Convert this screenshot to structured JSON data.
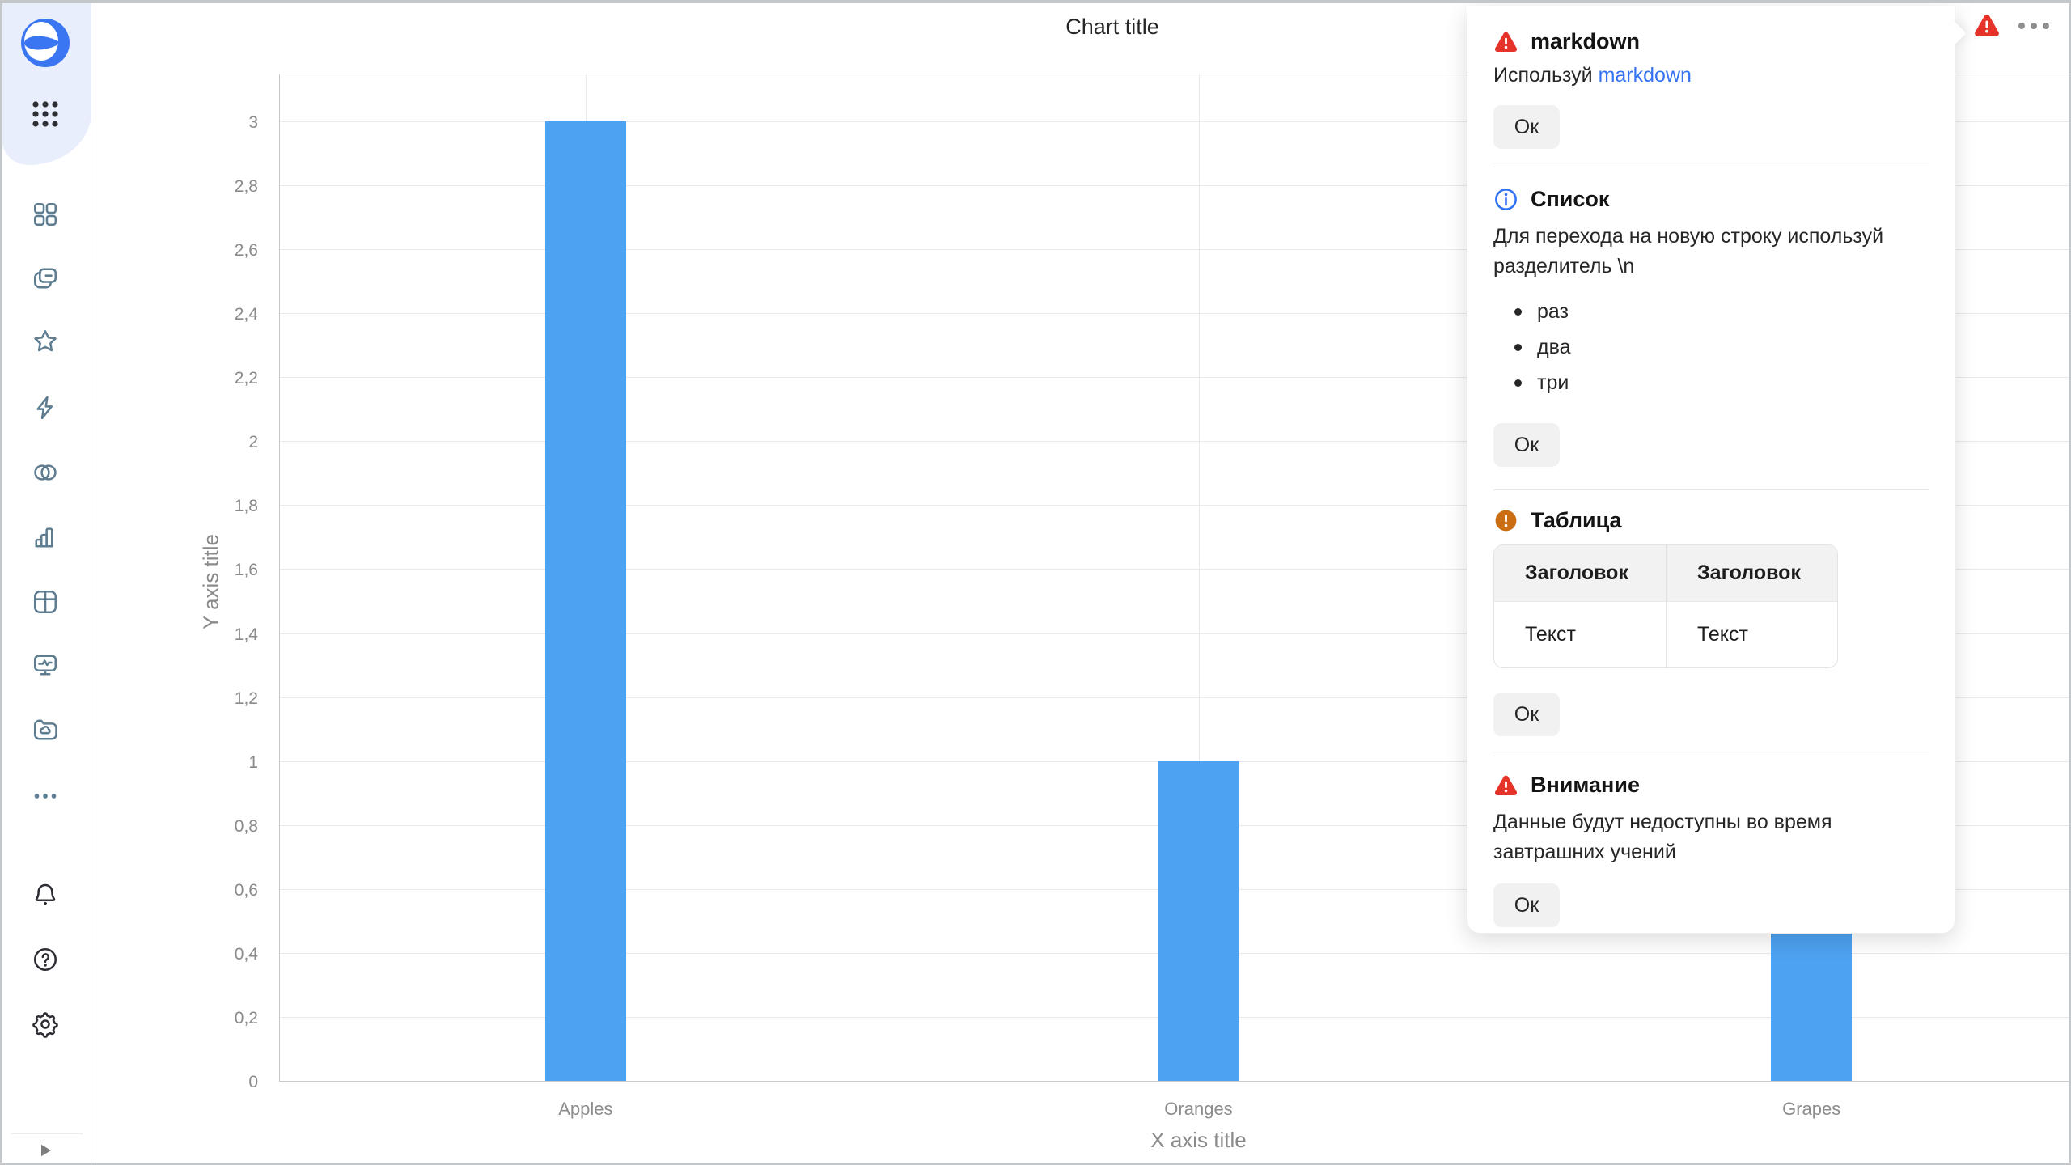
{
  "colors": {
    "bar_blue": "#4DA2F1",
    "link_blue": "#3673f2",
    "danger_red": "#e5332a",
    "info_blue": "#3173f4",
    "warning_orange": "#cb6d12",
    "sidebar_icon": "#5e7d90",
    "sidebar_icon_dark": "#2c2e33",
    "sidebar_accent_bg": "#e9eefc",
    "logo_blue": "#3b76f2"
  },
  "sidebar": {
    "logo": "datalens-logo",
    "icons_top": [
      "apps-grid-dots-icon",
      "dashboards-grid-icon",
      "collections-copy-icon",
      "favorites-star-icon",
      "editor-lightning-icon",
      "connections-circles-icon",
      "charts-bar-icon",
      "datasets-table-icon",
      "monitoring-screen-icon",
      "storage-folder-cloud-icon",
      "more-ellipsis-icon"
    ],
    "icons_bottom": [
      "notifications-bell-icon",
      "help-question-icon",
      "settings-gear-icon",
      "expand-play-icon"
    ]
  },
  "header": {
    "alerts_indicator": "alert-triangle-icon",
    "menu": "ellipsis-menu-icon"
  },
  "chart_data": {
    "type": "bar",
    "title": "Chart title",
    "categories": [
      "Apples",
      "Oranges",
      "Grapes"
    ],
    "values": [
      3,
      1,
      2
    ],
    "xlabel": "X axis title",
    "ylabel": "Y axis title",
    "ylim": [
      0,
      3
    ],
    "y_tick_step": 0.2,
    "y_ticks": [
      "0",
      "0,2",
      "0,4",
      "0,6",
      "0,8",
      "1",
      "1,2",
      "1,4",
      "1,6",
      "1,8",
      "2",
      "2,2",
      "2,4",
      "2,6",
      "2,8",
      "3"
    ],
    "bar_color": "#4DA2F1",
    "grid": true,
    "legend": false,
    "decimal_separator": ","
  },
  "popup": {
    "sections": [
      {
        "icon": "alert-triangle-icon",
        "icon_color": "#e5332a",
        "title": "markdown",
        "text_prefix": "Используй ",
        "link_text": "markdown",
        "ok": "Ок"
      },
      {
        "icon": "info-circle-icon",
        "icon_color": "#3173f4",
        "title": "Список",
        "text": "Для перехода на новую строку используй разделитель \\n",
        "bullets": [
          "раз",
          "два",
          "три"
        ],
        "ok": "Ок"
      },
      {
        "icon": "warning-circle-icon",
        "icon_color": "#cb6d12",
        "title": "Таблица",
        "table": {
          "headers": [
            "Заголовок",
            "Заголовок"
          ],
          "rows": [
            [
              "Текст",
              "Текст"
            ]
          ]
        },
        "ok": "Ок"
      },
      {
        "icon": "alert-triangle-icon",
        "icon_color": "#e5332a",
        "title": "Внимание",
        "text": "Данные будут недоступны во время завтрашних учений",
        "ok": "Ок"
      }
    ]
  }
}
